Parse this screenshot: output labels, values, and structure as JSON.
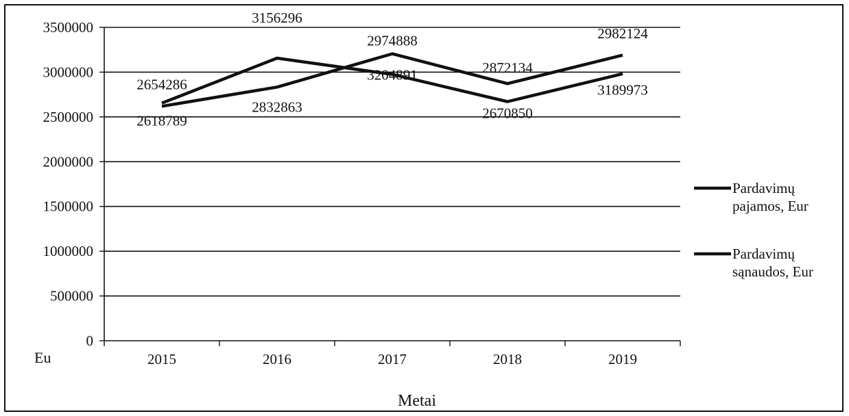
{
  "chart_data": {
    "type": "line",
    "categories": [
      "2015",
      "2016",
      "2017",
      "2018",
      "2019"
    ],
    "series": [
      {
        "name": "Pardavimų pajamos, Eur",
        "values": [
          2654286,
          3156296,
          2974888,
          2670850,
          2982124
        ],
        "point_labels": [
          "2654286",
          "3156296",
          "2974888",
          "2670850",
          "2982124"
        ]
      },
      {
        "name": "Pardavimų sąnaudos, Eur",
        "values": [
          2618789,
          2832863,
          3204891,
          2872134,
          3189973
        ],
        "point_labels": [
          "2618789",
          "2832863",
          "3204891",
          "2872134",
          "3189973"
        ]
      }
    ],
    "y_ticks": [
      "0",
      "500000",
      "1000000",
      "1500000",
      "2000000",
      "2500000",
      "3000000",
      "3500000"
    ],
    "ylim": [
      0,
      3500000
    ],
    "ylabel": "Eu",
    "xlabel": "Metai",
    "legend_position": "right",
    "grid": true,
    "line_color": "#111111"
  }
}
